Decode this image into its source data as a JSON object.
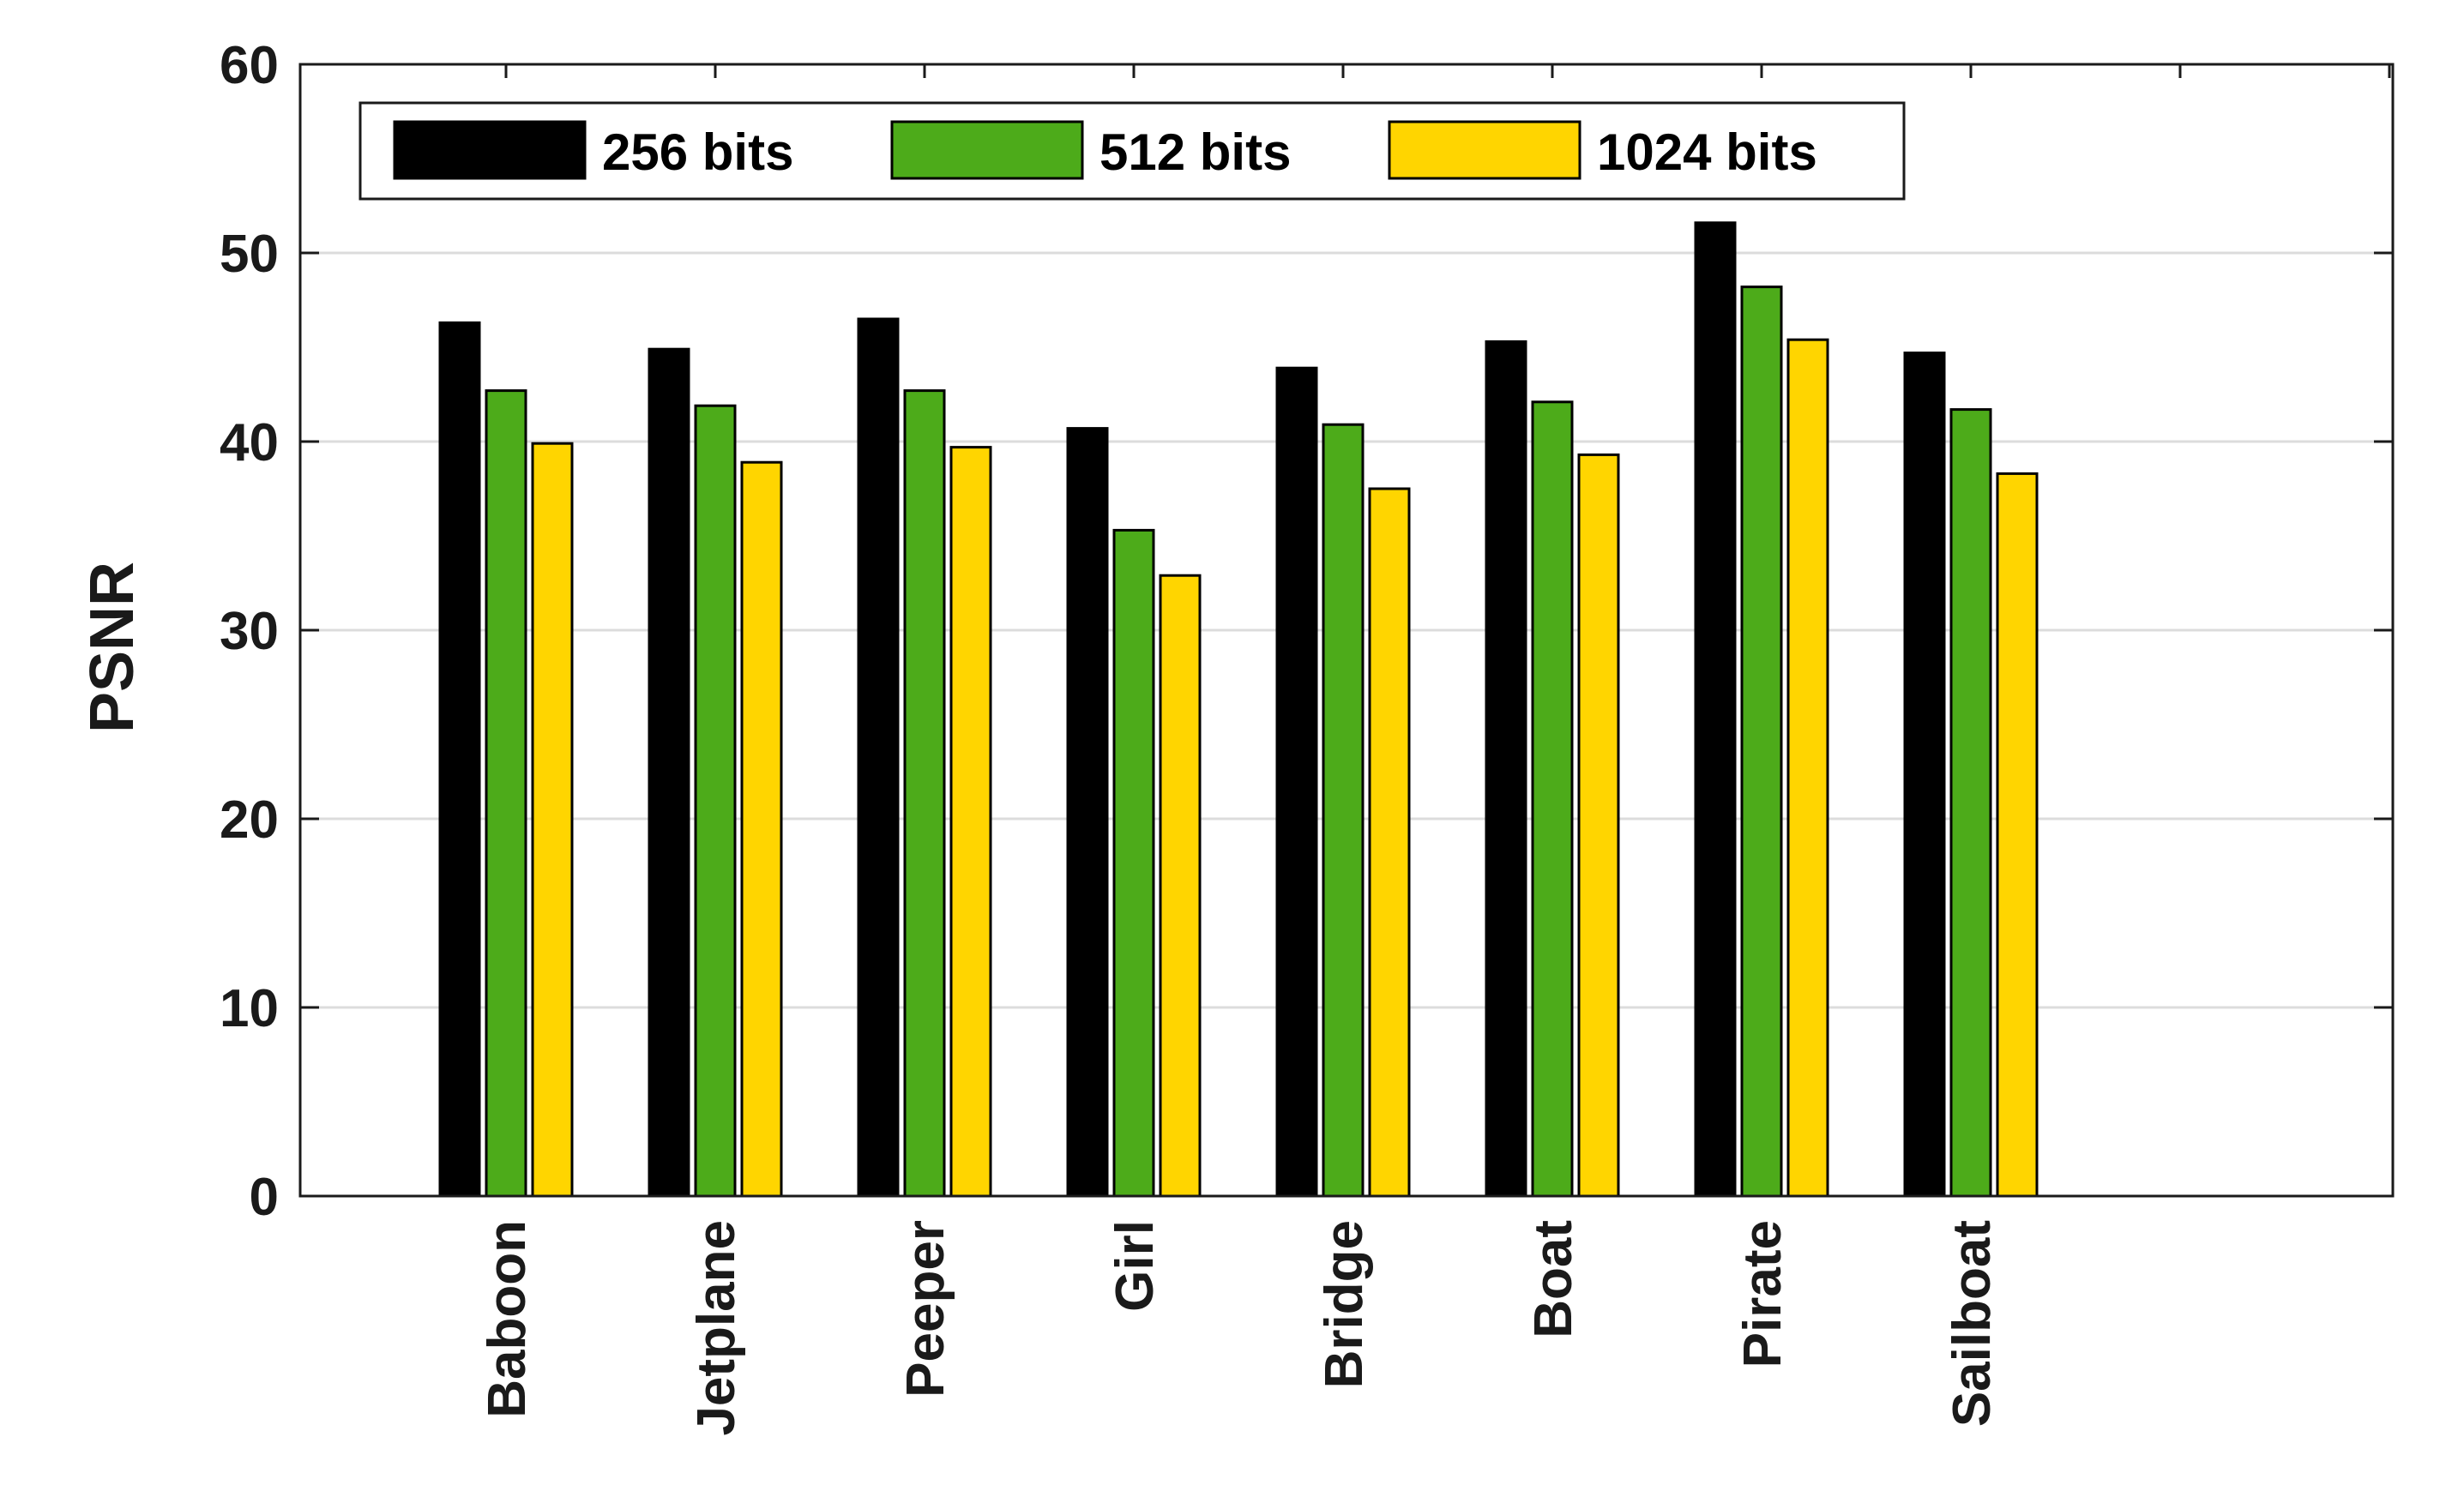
{
  "chart_data": {
    "type": "bar",
    "title": "",
    "xlabel": "",
    "ylabel": "PSNR",
    "ylim": [
      0,
      60
    ],
    "yticks": [
      0,
      10,
      20,
      30,
      40,
      50,
      60
    ],
    "grid": true,
    "legend_position": "top-left",
    "categories": [
      "Baboon",
      "Jetplane",
      "Peeper",
      "Girl",
      "Bridge",
      "Boat",
      "Pirate",
      "Sailboat"
    ],
    "series": [
      {
        "name": "256 bits",
        "color": "#000000",
        "values": [
          46.3,
          44.9,
          46.5,
          40.7,
          43.9,
          45.3,
          51.6,
          44.7
        ]
      },
      {
        "name": "512 bits",
        "color": "#4dab1a",
        "values": [
          42.7,
          41.9,
          42.7,
          35.3,
          40.9,
          42.1,
          48.2,
          41.7
        ]
      },
      {
        "name": "1024 bits",
        "color": "#ffd500",
        "values": [
          39.9,
          38.9,
          39.7,
          32.9,
          37.5,
          39.3,
          45.4,
          38.3
        ]
      }
    ]
  }
}
